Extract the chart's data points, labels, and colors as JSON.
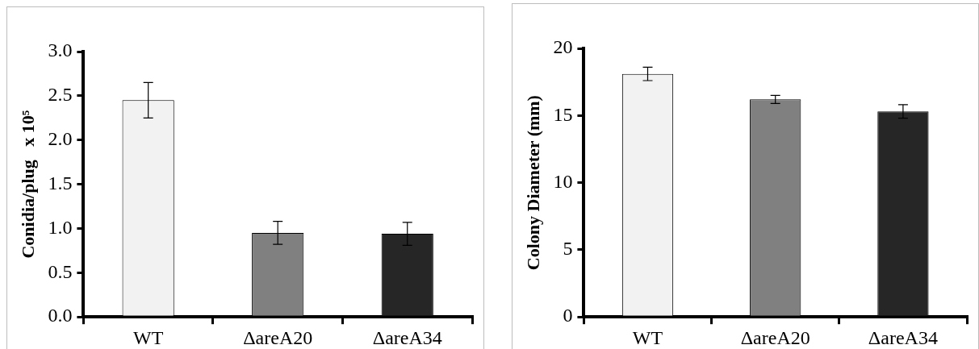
{
  "chart_data": [
    {
      "type": "bar",
      "ylabel": "Conidia/plug   x 10⁵",
      "categories": [
        "WT",
        "ΔareA20",
        "ΔareA34"
      ],
      "values": [
        2.45,
        0.95,
        0.94
      ],
      "colors": [
        "#f2f2f2",
        "#808080",
        "#262626"
      ],
      "errors": [
        0.2,
        0.13,
        0.13
      ],
      "ylim": [
        0,
        3
      ],
      "yticks": [
        {
          "value": 0,
          "label": "0.0"
        },
        {
          "value": 0.5,
          "label": "0.5"
        },
        {
          "value": 1,
          "label": "1.0"
        },
        {
          "value": 1.5,
          "label": "1.5"
        },
        {
          "value": 2,
          "label": "2.0"
        },
        {
          "value": 2.5,
          "label": "2.5"
        },
        {
          "value": 3,
          "label": "3.0"
        }
      ]
    },
    {
      "type": "bar",
      "ylabel": "Colony Diameter (mm)",
      "categories": [
        "WT",
        "ΔareA20",
        "ΔareA34"
      ],
      "values": [
        18.1,
        16.2,
        15.3
      ],
      "colors": [
        "#f2f2f2",
        "#808080",
        "#262626"
      ],
      "errors": [
        0.5,
        0.3,
        0.5
      ],
      "ylim": [
        0,
        20
      ],
      "yticks": [
        0,
        5,
        10,
        15,
        20
      ]
    }
  ]
}
